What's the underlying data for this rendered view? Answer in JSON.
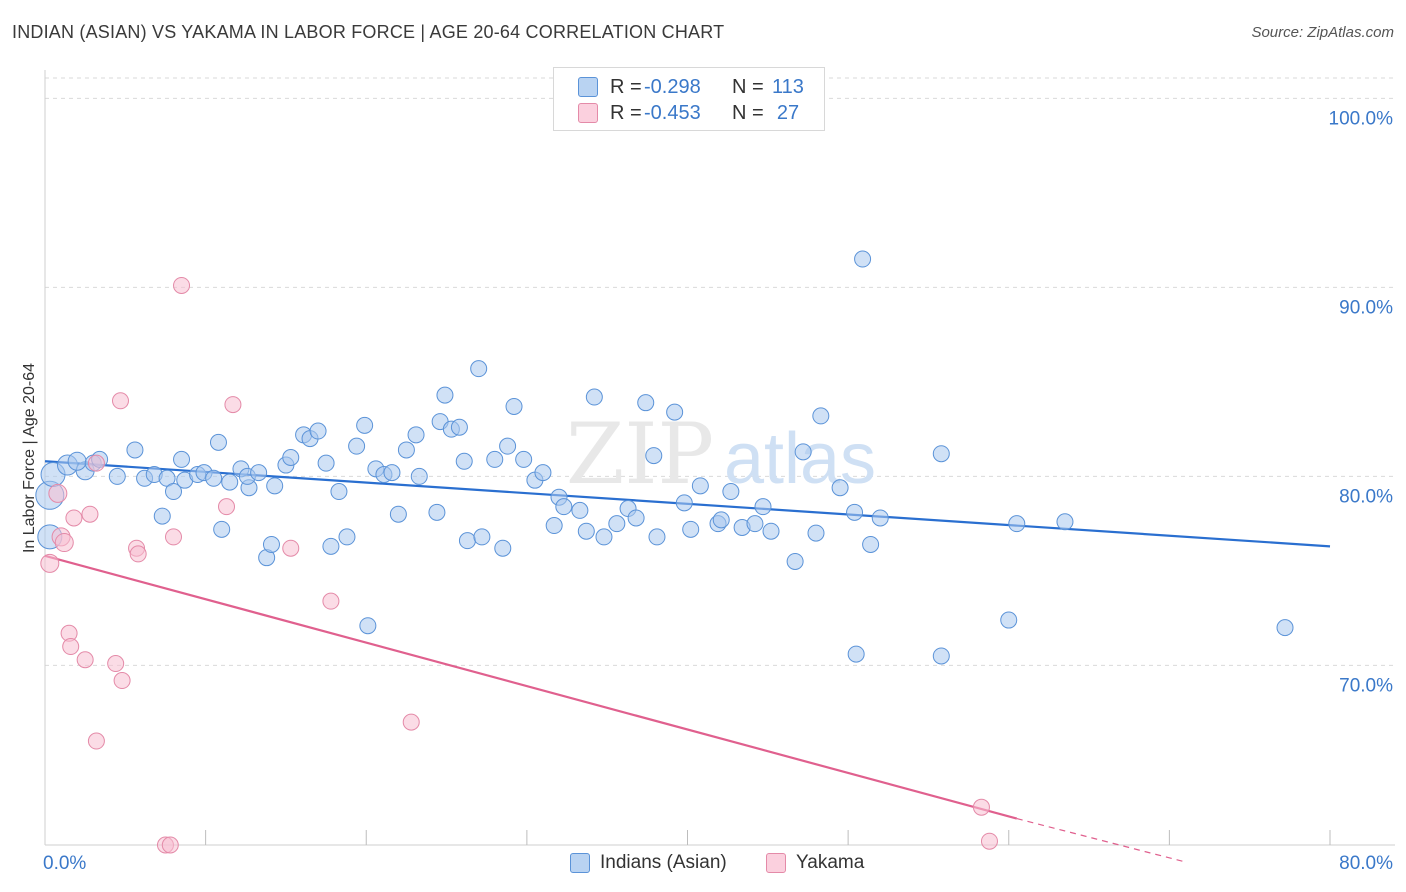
{
  "title": "INDIAN (ASIAN) VS YAKAMA IN LABOR FORCE | AGE 20-64 CORRELATION CHART",
  "source": "Source: ZipAtlas.com",
  "watermark": {
    "zip": "ZIP",
    "atlas": "atlas"
  },
  "colors": {
    "blue_fill": "#a9c8ee",
    "blue_stroke": "#5b93d8",
    "blue_line": "#2a6fd0",
    "pink_fill": "#f7c0d2",
    "pink_stroke": "#e48aa8",
    "pink_line": "#e0608e",
    "axis_text": "#3a78c9",
    "grid": "#d9d9d9"
  },
  "legend": {
    "rows": [
      {
        "r_label": "R =",
        "r_value": "-0.298",
        "n_label": "N =",
        "n_value": "113"
      },
      {
        "r_label": "R =",
        "r_value": "-0.453",
        "n_label": "N =",
        "n_value": "27"
      }
    ]
  },
  "bottom_legend": {
    "series1": "Indians (Asian)",
    "series2": "Yakama"
  },
  "chart_data": {
    "type": "scatter",
    "title": "INDIAN (ASIAN) VS YAKAMA IN LABOR FORCE | AGE 20-64 CORRELATION CHART",
    "xlabel": "",
    "ylabel": "In Labor Force | Age 20-64",
    "xlim": [
      0,
      80
    ],
    "ylim": [
      60.5,
      101.5
    ],
    "x_tick_labels": [
      "0.0%",
      "80.0%"
    ],
    "y_ticks": [
      {
        "value": 100,
        "label": "100.0%"
      },
      {
        "value": 90,
        "label": "90.0%"
      },
      {
        "value": 80,
        "label": "80.0%"
      },
      {
        "value": 70,
        "label": "70.0%"
      }
    ],
    "grid": true,
    "series": [
      {
        "name": "Indians (Asian)",
        "r": -0.298,
        "n": 113,
        "trend": {
          "x": [
            0,
            80
          ],
          "y": [
            80.8,
            76.3
          ]
        },
        "points": [
          [
            0.3,
            79.0,
            14
          ],
          [
            0.5,
            80.1,
            12
          ],
          [
            0.3,
            76.8,
            12
          ],
          [
            1.4,
            80.6,
            10
          ],
          [
            2.5,
            80.3,
            9
          ],
          [
            2.0,
            80.8,
            9
          ],
          [
            3.0,
            80.7,
            8
          ],
          [
            3.4,
            80.9,
            8
          ],
          [
            4.5,
            80.0,
            8
          ],
          [
            5.6,
            81.4,
            8
          ],
          [
            6.2,
            79.9,
            8
          ],
          [
            6.8,
            80.1,
            8
          ],
          [
            7.6,
            79.9,
            8
          ],
          [
            7.3,
            77.9,
            8
          ],
          [
            8.0,
            79.2,
            8
          ],
          [
            8.5,
            80.9,
            8
          ],
          [
            8.7,
            79.8,
            8
          ],
          [
            9.5,
            80.1,
            8
          ],
          [
            9.9,
            80.2,
            8
          ],
          [
            10.5,
            79.9,
            8
          ],
          [
            10.8,
            81.8,
            8
          ],
          [
            11.0,
            77.2,
            8
          ],
          [
            11.5,
            79.7,
            8
          ],
          [
            12.2,
            80.4,
            8
          ],
          [
            12.7,
            79.4,
            8
          ],
          [
            12.6,
            80.0,
            8
          ],
          [
            13.3,
            80.2,
            8
          ],
          [
            13.8,
            75.7,
            8
          ],
          [
            14.1,
            76.4,
            8
          ],
          [
            14.3,
            79.5,
            8
          ],
          [
            15.0,
            80.6,
            8
          ],
          [
            15.3,
            81.0,
            8
          ],
          [
            16.1,
            82.2,
            8
          ],
          [
            16.5,
            82.0,
            8
          ],
          [
            17.0,
            82.4,
            8
          ],
          [
            17.5,
            80.7,
            8
          ],
          [
            17.8,
            76.3,
            8
          ],
          [
            18.3,
            79.2,
            8
          ],
          [
            18.8,
            76.8,
            8
          ],
          [
            19.4,
            81.6,
            8
          ],
          [
            19.9,
            82.7,
            8
          ],
          [
            20.1,
            72.1,
            8
          ],
          [
            20.6,
            80.4,
            8
          ],
          [
            21.1,
            80.1,
            8
          ],
          [
            21.6,
            80.2,
            8
          ],
          [
            22.0,
            78.0,
            8
          ],
          [
            22.5,
            81.4,
            8
          ],
          [
            23.1,
            82.2,
            8
          ],
          [
            23.3,
            80.0,
            8
          ],
          [
            24.4,
            78.1,
            8
          ],
          [
            24.6,
            82.9,
            8
          ],
          [
            24.9,
            84.3,
            8
          ],
          [
            25.3,
            82.5,
            8
          ],
          [
            25.8,
            82.6,
            8
          ],
          [
            26.1,
            80.8,
            8
          ],
          [
            26.3,
            76.6,
            8
          ],
          [
            27.0,
            85.7,
            8
          ],
          [
            27.2,
            76.8,
            8
          ],
          [
            28.0,
            80.9,
            8
          ],
          [
            28.5,
            76.2,
            8
          ],
          [
            28.8,
            81.6,
            8
          ],
          [
            29.2,
            83.7,
            8
          ],
          [
            29.8,
            80.9,
            8
          ],
          [
            30.5,
            79.8,
            8
          ],
          [
            31.0,
            80.2,
            8
          ],
          [
            31.7,
            77.4,
            8
          ],
          [
            32.0,
            78.9,
            8
          ],
          [
            32.3,
            78.4,
            8
          ],
          [
            33.3,
            78.2,
            8
          ],
          [
            33.7,
            77.1,
            8
          ],
          [
            34.2,
            84.2,
            8
          ],
          [
            34.8,
            76.8,
            8
          ],
          [
            35.6,
            77.5,
            8
          ],
          [
            36.3,
            78.3,
            8
          ],
          [
            36.8,
            77.8,
            8
          ],
          [
            37.4,
            83.9,
            8
          ],
          [
            37.9,
            81.1,
            8
          ],
          [
            38.1,
            76.8,
            8
          ],
          [
            39.2,
            83.4,
            8
          ],
          [
            39.8,
            78.6,
            8
          ],
          [
            40.2,
            77.2,
            8
          ],
          [
            40.8,
            79.5,
            8
          ],
          [
            41.9,
            77.5,
            8
          ],
          [
            42.1,
            77.7,
            8
          ],
          [
            42.7,
            79.2,
            8
          ],
          [
            43.4,
            77.3,
            8
          ],
          [
            44.2,
            77.5,
            8
          ],
          [
            44.7,
            78.4,
            8
          ],
          [
            45.2,
            77.1,
            8
          ],
          [
            46.7,
            75.5,
            8
          ],
          [
            47.2,
            81.3,
            8
          ],
          [
            48.0,
            77.0,
            8
          ],
          [
            48.3,
            83.2,
            8
          ],
          [
            49.5,
            79.4,
            8
          ],
          [
            50.4,
            78.1,
            8
          ],
          [
            50.5,
            70.6,
            8
          ],
          [
            50.9,
            91.5,
            8
          ],
          [
            51.4,
            76.4,
            8
          ],
          [
            52.0,
            77.8,
            8
          ],
          [
            55.8,
            81.2,
            8
          ],
          [
            55.8,
            70.5,
            8
          ],
          [
            60.0,
            72.4,
            8
          ],
          [
            60.5,
            77.5,
            8
          ],
          [
            63.5,
            77.6,
            8
          ],
          [
            77.2,
            72.0,
            8
          ]
        ]
      },
      {
        "name": "Yakama",
        "r": -0.453,
        "n": 27,
        "trend": {
          "x": [
            0,
            60.5
          ],
          "y": [
            75.8,
            61.9
          ]
        },
        "trend_dashed": {
          "x": [
            60.5,
            71
          ],
          "y": [
            61.9,
            59.6
          ]
        },
        "points": [
          [
            0.3,
            75.4,
            9
          ],
          [
            0.8,
            79.1,
            9
          ],
          [
            1.0,
            76.8,
            9
          ],
          [
            1.2,
            76.5,
            9
          ],
          [
            1.5,
            71.7,
            8
          ],
          [
            1.6,
            71.0,
            8
          ],
          [
            1.8,
            77.8,
            8
          ],
          [
            2.5,
            70.3,
            8
          ],
          [
            2.8,
            78.0,
            8
          ],
          [
            3.2,
            80.7,
            8
          ],
          [
            3.2,
            66.0,
            8
          ],
          [
            4.4,
            70.1,
            8
          ],
          [
            4.8,
            69.2,
            8
          ],
          [
            4.7,
            84.0,
            8
          ],
          [
            5.7,
            76.2,
            8
          ],
          [
            5.8,
            75.9,
            8
          ],
          [
            7.5,
            60.5,
            8
          ],
          [
            7.8,
            60.5,
            8
          ],
          [
            8.0,
            76.8,
            8
          ],
          [
            8.5,
            90.1,
            8
          ],
          [
            11.3,
            78.4,
            8
          ],
          [
            11.7,
            83.8,
            8
          ],
          [
            15.3,
            76.2,
            8
          ],
          [
            17.8,
            73.4,
            8
          ],
          [
            22.8,
            67.0,
            8
          ],
          [
            58.3,
            62.5,
            8
          ],
          [
            58.8,
            60.7,
            8
          ]
        ]
      }
    ]
  }
}
